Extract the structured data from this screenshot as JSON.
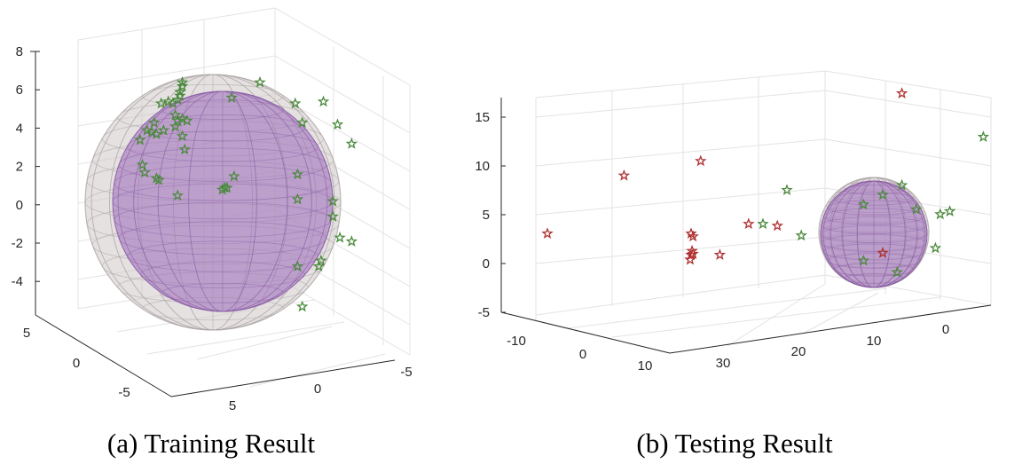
{
  "chart_data": [
    {
      "type": "scatter",
      "caption": "(a) Training Result",
      "z_ticks": [
        "8",
        "6",
        "4",
        "2",
        "0",
        "-2",
        "-4"
      ],
      "x_ticks": [
        "5",
        "0",
        "-5"
      ],
      "y_ticks": [
        "5",
        "0",
        "-5"
      ],
      "grid": true,
      "spheres": [
        {
          "role": "outer",
          "color": "#c9c1c1",
          "fill_opacity": 0.45
        },
        {
          "role": "inner",
          "color": "#a77ac0",
          "fill_opacity": 0.55
        }
      ],
      "series": [
        {
          "marker": "star",
          "color": "#4a8a3c",
          "points": [
            [
              -1.4,
              5.8
            ],
            [
              -1.3,
              6.1
            ],
            [
              -1.3,
              6.3
            ],
            [
              -1.4,
              5.6
            ],
            [
              -1.5,
              5.4
            ],
            [
              -1.7,
              5.2
            ],
            [
              -1.9,
              5.3
            ],
            [
              -2.2,
              5.2
            ],
            [
              -1.6,
              4.6
            ],
            [
              -1.5,
              4.3
            ],
            [
              -1.3,
              4.4
            ],
            [
              -1.1,
              4.3
            ],
            [
              -1.6,
              4.0
            ],
            [
              -2.1,
              3.8
            ],
            [
              -2.4,
              3.6
            ],
            [
              -2.6,
              3.7
            ],
            [
              -2.5,
              4.2
            ],
            [
              -2.8,
              3.8
            ],
            [
              -3.1,
              3.3
            ],
            [
              -1.3,
              3.5
            ],
            [
              -1.2,
              2.8
            ],
            [
              -3.0,
              2.0
            ],
            [
              -2.9,
              1.6
            ],
            [
              -2.4,
              1.3
            ],
            [
              -2.3,
              1.2
            ],
            [
              -1.5,
              0.4
            ],
            [
              0.8,
              5.5
            ],
            [
              2.0,
              6.3
            ],
            [
              3.5,
              5.2
            ],
            [
              3.8,
              4.2
            ],
            [
              4.7,
              5.3
            ],
            [
              5.3,
              4.1
            ],
            [
              5.9,
              3.1
            ],
            [
              3.6,
              1.5
            ],
            [
              3.6,
              0.2
            ],
            [
              0.4,
              0.7
            ],
            [
              0.5,
              0.8
            ],
            [
              0.6,
              0.8
            ],
            [
              0.9,
              1.4
            ],
            [
              5.1,
              0.1
            ],
            [
              5.1,
              -0.7
            ],
            [
              5.4,
              -1.8
            ],
            [
              5.9,
              -2.0
            ],
            [
              4.6,
              -3.0
            ],
            [
              4.5,
              -3.3
            ],
            [
              3.6,
              -3.3
            ],
            [
              3.8,
              -5.4
            ]
          ]
        }
      ]
    },
    {
      "type": "scatter",
      "caption": "(b) Testing Result",
      "z_ticks": [
        "15",
        "10",
        "5",
        "0",
        "-5"
      ],
      "x_ticks": [
        "-10",
        "0",
        "10"
      ],
      "y_ticks": [
        "30",
        "20",
        "10",
        "0"
      ],
      "grid": true,
      "spheres": [
        {
          "role": "outer",
          "color": "#c9c1c1",
          "fill_opacity": 0.45
        },
        {
          "role": "inner",
          "color": "#a77ac0",
          "fill_opacity": 0.55
        }
      ],
      "series": [
        {
          "marker": "star",
          "color": "#b03030",
          "points": [
            [
              -15.0,
              3.0
            ],
            [
              -7.0,
              9.0
            ],
            [
              1.0,
              10.5
            ],
            [
              0.0,
              3.0
            ],
            [
              0.2,
              2.7
            ],
            [
              0.1,
              1.2
            ],
            [
              0.0,
              0.8
            ],
            [
              -0.1,
              0.3
            ],
            [
              0.2,
              0.9
            ],
            [
              3.0,
              0.8
            ],
            [
              6.0,
              4.0
            ],
            [
              9.0,
              3.8
            ],
            [
              22.0,
              17.5
            ],
            [
              20.0,
              1.0
            ]
          ]
        },
        {
          "marker": "star",
          "color": "#4a8a3c",
          "points": [
            [
              7.5,
              4.0
            ],
            [
              10.0,
              7.5
            ],
            [
              11.5,
              2.8
            ],
            [
              18.0,
              6.0
            ],
            [
              20.0,
              7.0
            ],
            [
              22.0,
              8.0
            ],
            [
              23.5,
              5.5
            ],
            [
              26.0,
              5.0
            ],
            [
              27.0,
              5.3
            ],
            [
              25.5,
              1.5
            ],
            [
              18.0,
              0.2
            ],
            [
              21.5,
              -1.0
            ],
            [
              30.5,
              13.0
            ]
          ]
        }
      ]
    }
  ]
}
